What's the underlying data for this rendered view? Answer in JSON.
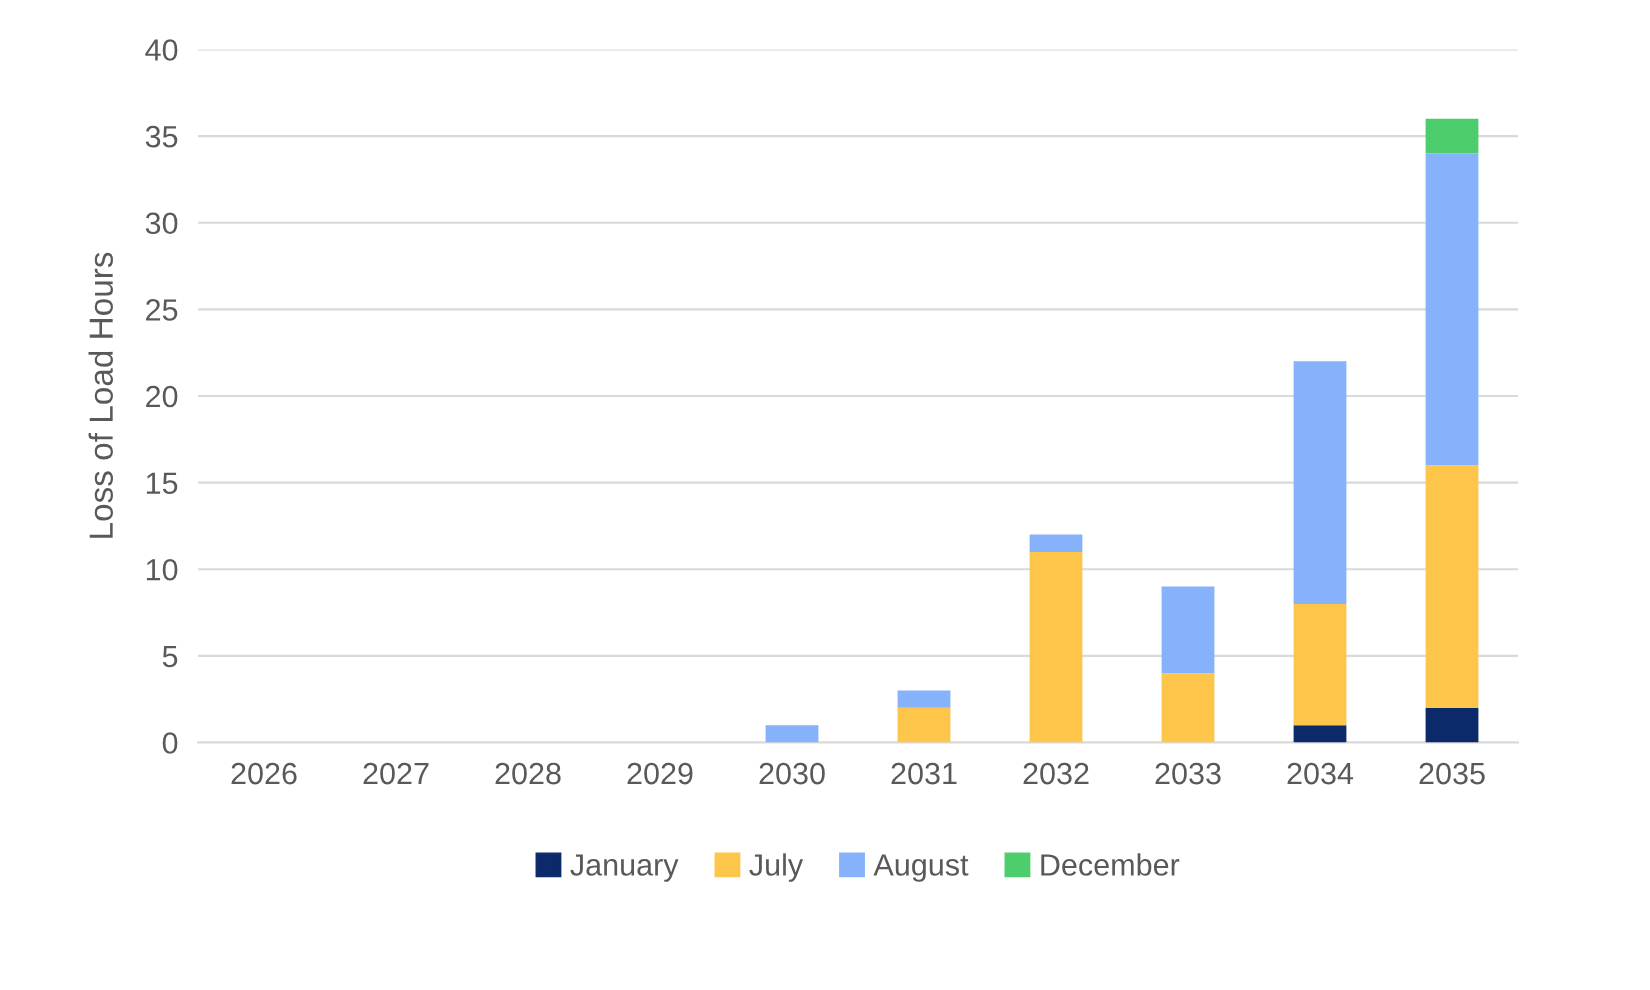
{
  "chart_data": {
    "type": "bar",
    "stacked": true,
    "ylabel": "Loss of Load Hours",
    "categories": [
      "2026",
      "2027",
      "2028",
      "2029",
      "2030",
      "2031",
      "2032",
      "2033",
      "2034",
      "2035"
    ],
    "series": [
      {
        "name": "January",
        "color": "#0c2a6a",
        "values": [
          0,
          0,
          0,
          0,
          0,
          0,
          0,
          0,
          1,
          2
        ]
      },
      {
        "name": "July",
        "color": "#fec54b",
        "values": [
          0,
          0,
          0,
          0,
          0,
          2,
          11,
          4,
          7,
          14
        ]
      },
      {
        "name": "August",
        "color": "#86b2fb",
        "values": [
          0,
          0,
          0,
          0,
          1,
          1,
          1,
          5,
          14,
          18
        ]
      },
      {
        "name": "December",
        "color": "#4dcd6b",
        "values": [
          0,
          0,
          0,
          0,
          0,
          0,
          0,
          0,
          0,
          2
        ]
      }
    ],
    "ylim": [
      0,
      40
    ],
    "yticks": [
      0,
      5,
      10,
      15,
      20,
      25,
      30,
      35,
      40
    ],
    "grid": "y",
    "legend": "bottom"
  }
}
